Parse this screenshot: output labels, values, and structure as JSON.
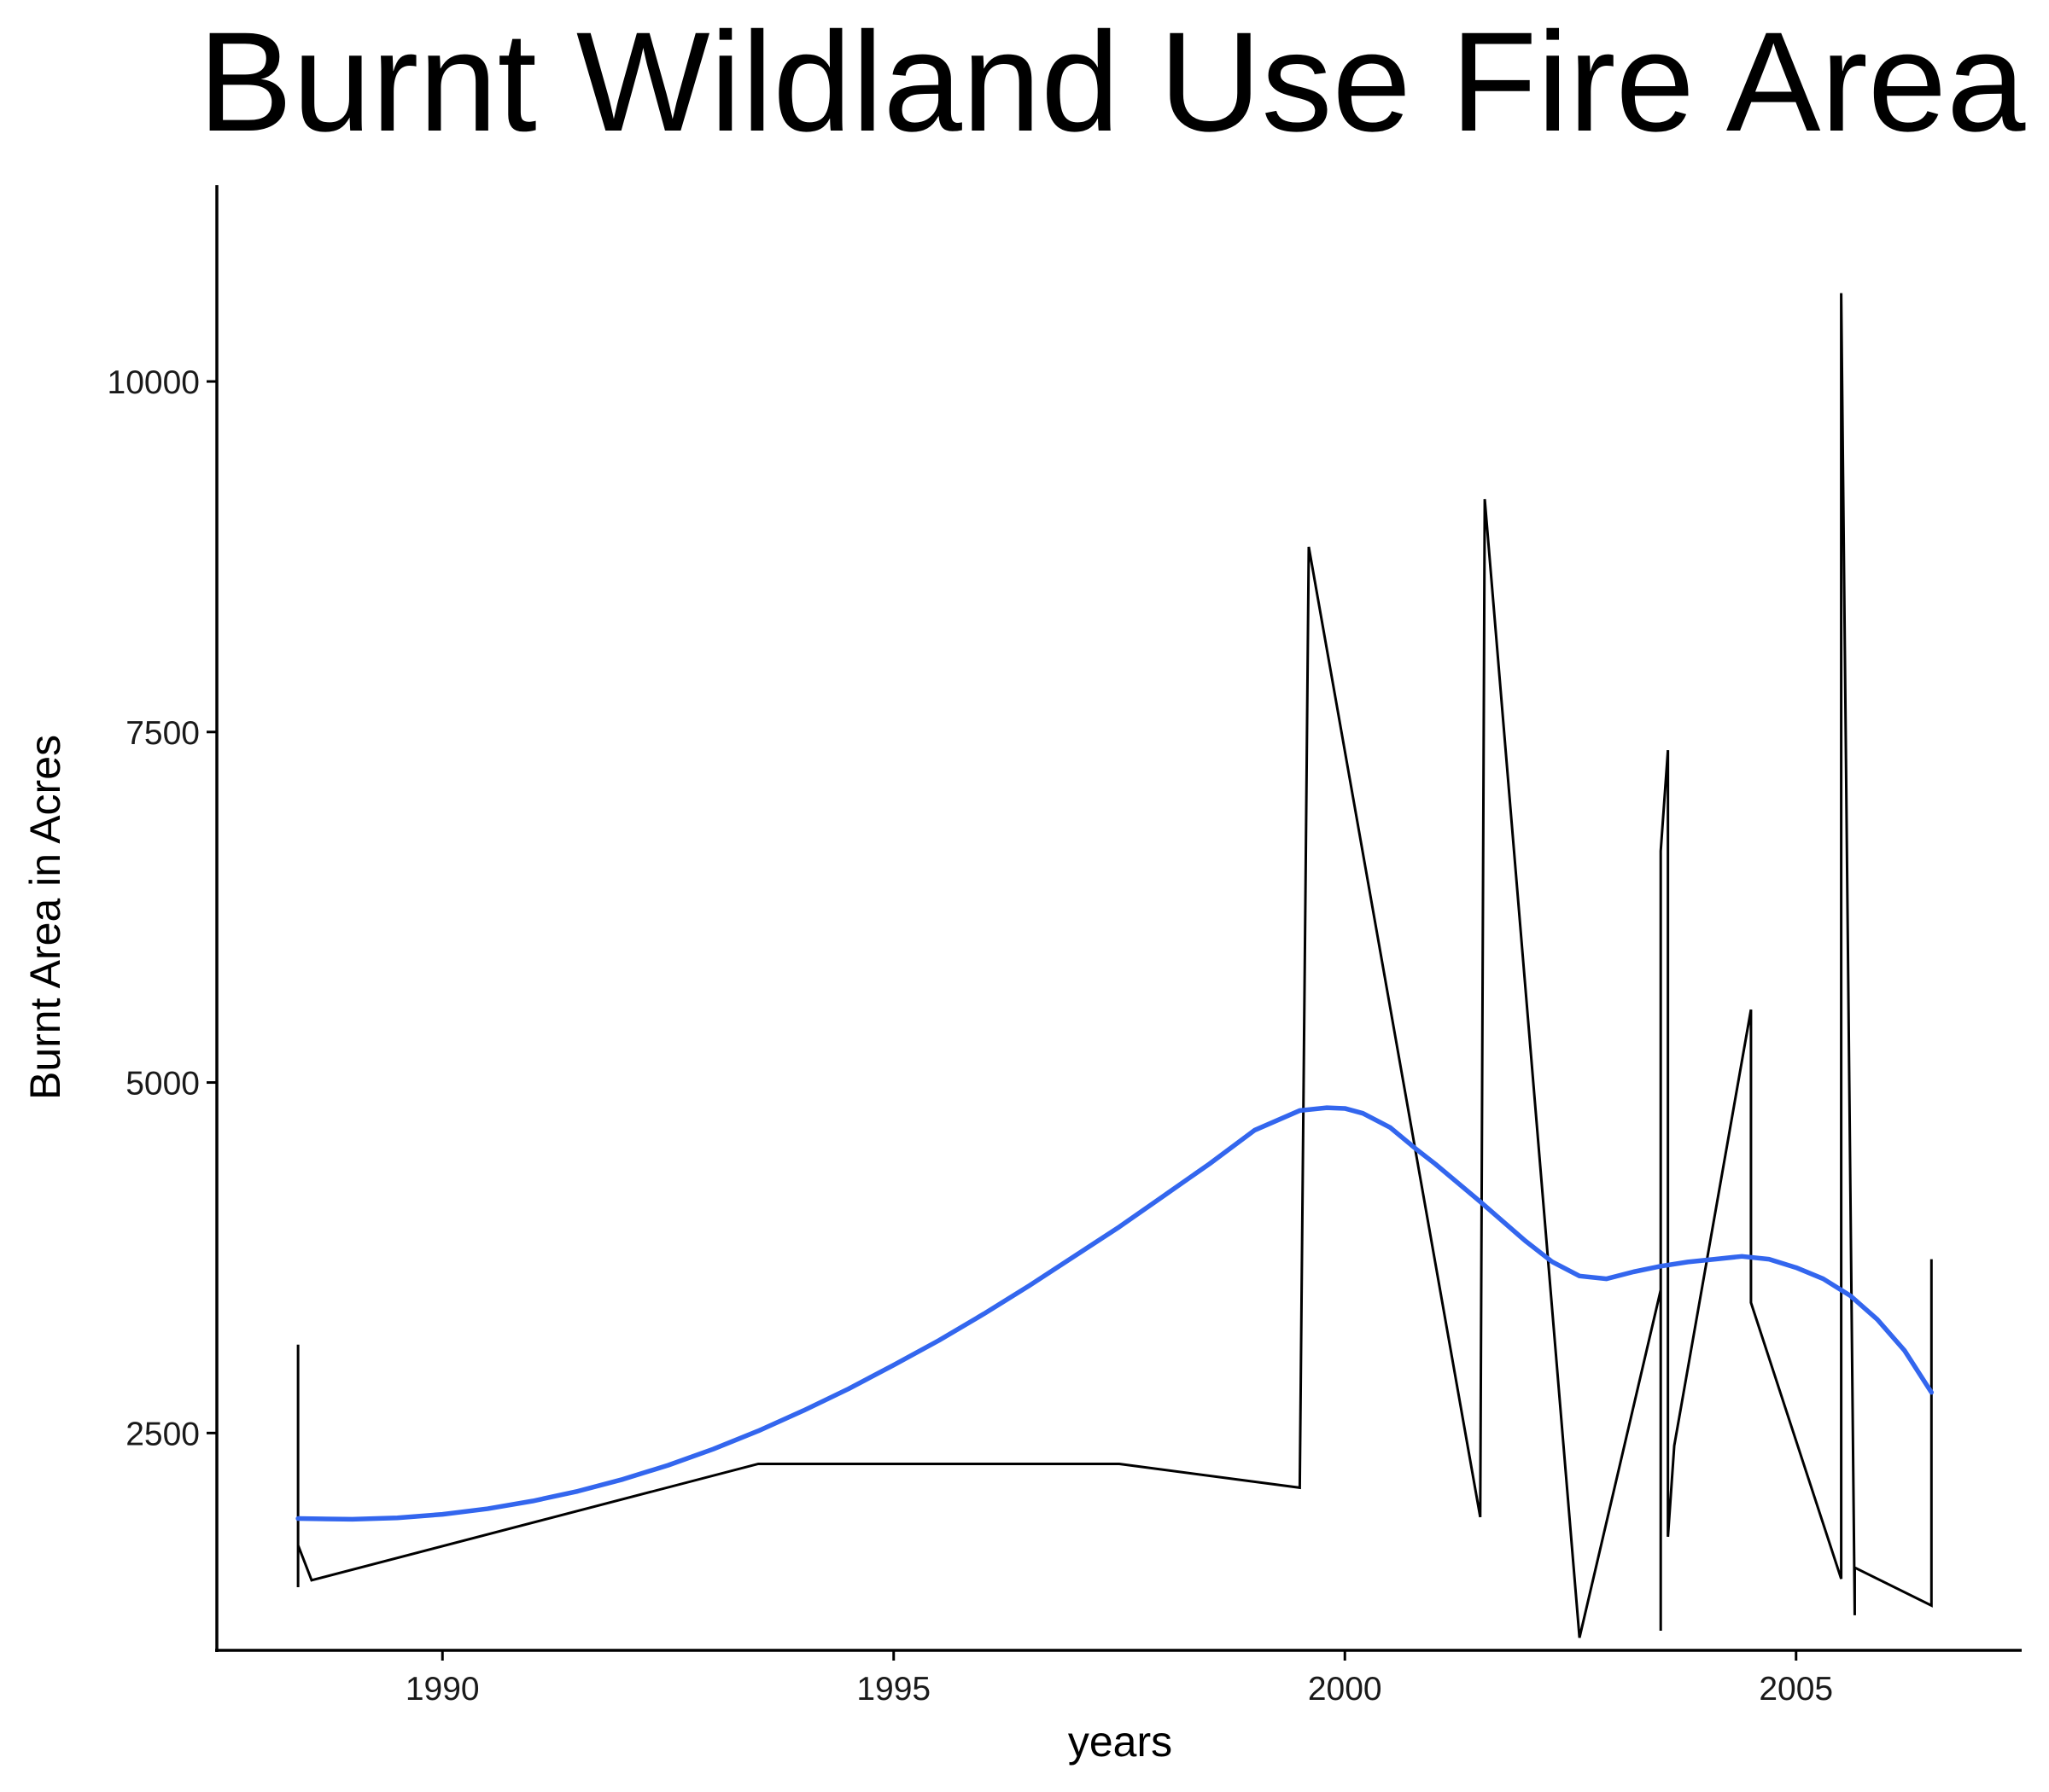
{
  "chart_data": {
    "type": "line",
    "title": "Burnt Wildland Use Fire Area",
    "xlabel": "years",
    "ylabel": "Burnt Area in Acres",
    "xlim": [
      1987.5,
      2007.5
    ],
    "ylim": [
      950,
      11400
    ],
    "x_ticks": [
      1990,
      1995,
      2000,
      2005
    ],
    "x_tick_labels": [
      "1990",
      "1995",
      "2000",
      "2005"
    ],
    "y_ticks": [
      2500,
      5000,
      7500,
      10000
    ],
    "y_tick_labels": [
      "2500",
      "5000",
      "7500",
      "10000"
    ],
    "grid": false,
    "legend": "none",
    "series": [
      {
        "kind": "raw",
        "color": "#000000",
        "x": [
          1988.4,
          1988.4,
          1988.4,
          1988.55,
          1993.5,
          1997.5,
          1999.5,
          1999.5,
          1999.6,
          2001.5,
          2001.5,
          2001.55,
          2002.6,
          2003.5,
          2003.5,
          2003.5,
          2003.58,
          2003.58,
          2003.58,
          2003.65,
          2004.5,
          2004.5,
          2005.5,
          2005.5,
          2005.5,
          2005.65,
          2005.65,
          2006.5,
          2006.5
        ],
        "y": [
          3130,
          1400,
          1700,
          1450,
          2280,
          2280,
          2110,
          2110,
          8820,
          1900,
          1900,
          9160,
          1040,
          3520,
          1090,
          6650,
          7370,
          1760,
          1760,
          2410,
          5520,
          3430,
          1460,
          1460,
          10630,
          1200,
          1540,
          1270,
          3740
        ]
      },
      {
        "kind": "smooth",
        "color": "#3366ee",
        "x": [
          1988.4,
          1989.0,
          1989.5,
          1990.0,
          1990.5,
          1991.0,
          1991.5,
          1992.0,
          1992.5,
          1993.0,
          1993.5,
          1994.0,
          1994.5,
          1995.0,
          1995.5,
          1996.0,
          1996.5,
          1997.0,
          1997.5,
          1998.0,
          1998.5,
          1999.0,
          1999.5,
          1999.8,
          2000.0,
          2000.2,
          2000.5,
          2000.8,
          2001.0,
          2001.5,
          2002.0,
          2002.3,
          2002.6,
          2002.9,
          2003.2,
          2003.5,
          2003.8,
          2004.1,
          2004.4,
          2004.7,
          2005.0,
          2005.3,
          2005.6,
          2005.9,
          2006.2,
          2006.5
        ],
        "y": [
          1890,
          1885,
          1895,
          1920,
          1960,
          2015,
          2085,
          2170,
          2270,
          2385,
          2515,
          2660,
          2815,
          2985,
          3160,
          3350,
          3550,
          3760,
          3970,
          4195,
          4420,
          4660,
          4800,
          4820,
          4815,
          4780,
          4680,
          4520,
          4420,
          4150,
          3870,
          3720,
          3620,
          3600,
          3650,
          3690,
          3720,
          3740,
          3760,
          3740,
          3680,
          3600,
          3480,
          3310,
          3090,
          2790
        ]
      }
    ]
  }
}
